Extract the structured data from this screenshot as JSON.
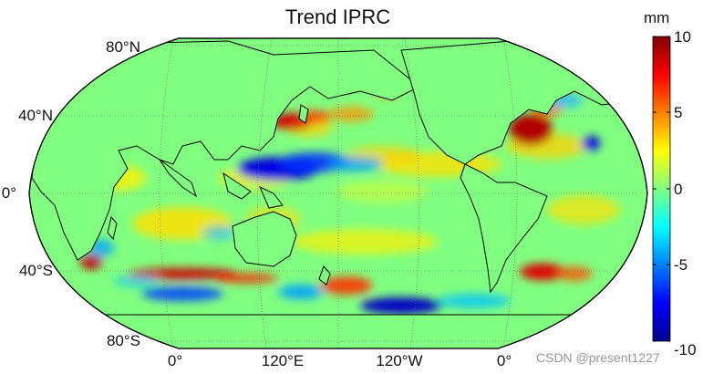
{
  "title": "Trend IPRC",
  "lat_labels": [
    "80°N",
    "40°N",
    "0°",
    "40°S",
    "80°S"
  ],
  "lon_labels": [
    "0°",
    "120°E",
    "120°W",
    "0°"
  ],
  "colorbar": {
    "unit": "mm",
    "ticks": [
      "10",
      "5",
      "0",
      "-5",
      "-10"
    ],
    "range": [
      -10,
      10
    ],
    "colormap": "jet"
  },
  "watermark": "CSDN @present1227",
  "colors": {
    "land": "#80FF80",
    "coastline": "#000000",
    "grid": "#888888"
  },
  "projection": "Robinson",
  "grid": "dotted"
}
